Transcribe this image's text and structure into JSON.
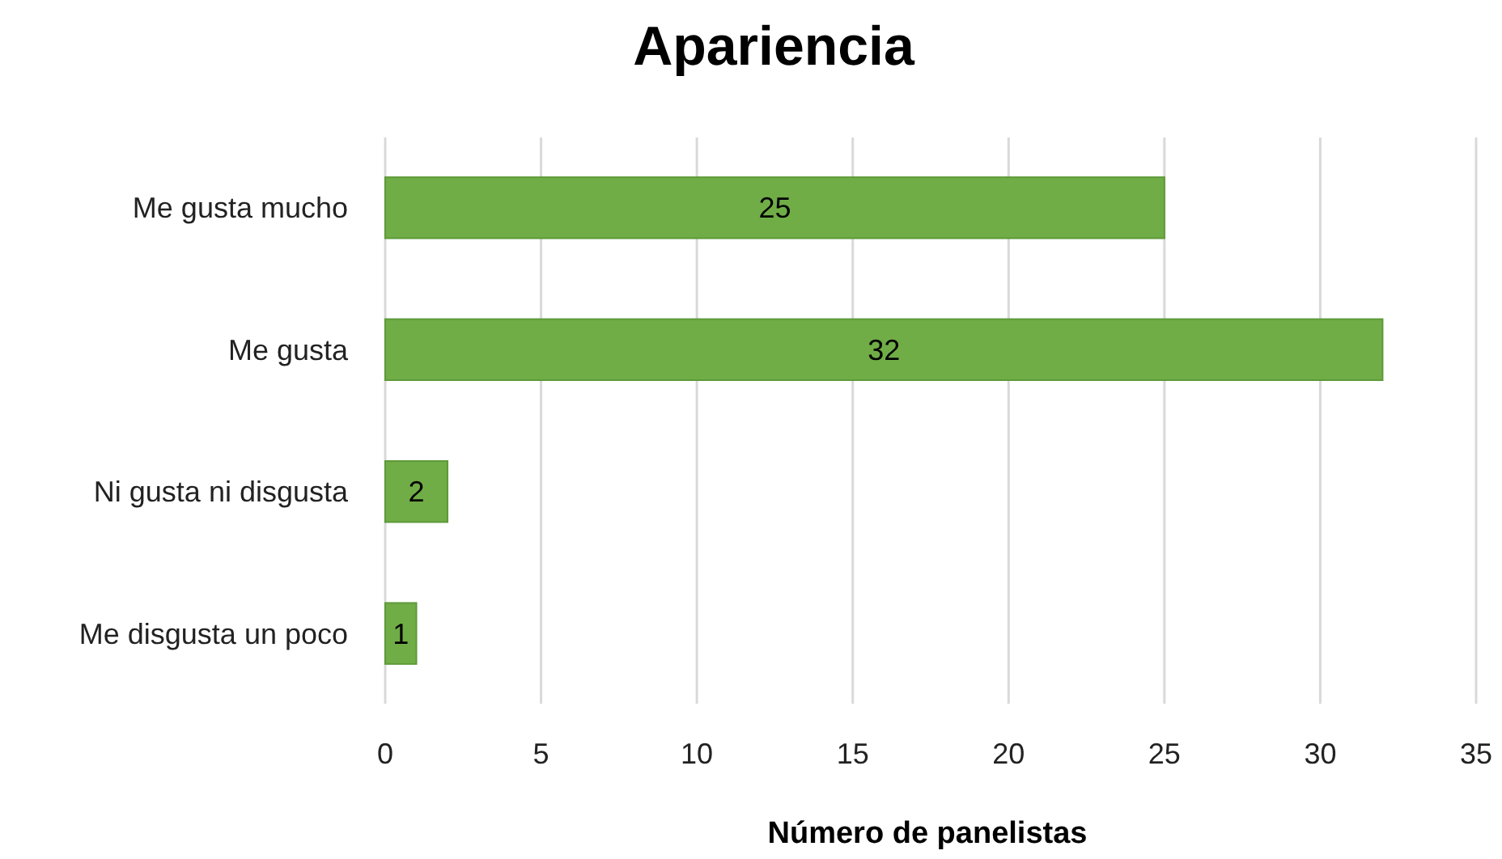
{
  "chart_data": {
    "type": "bar",
    "orientation": "horizontal",
    "title": "Apariencia",
    "xlabel": "Número de panelistas",
    "categories": [
      "Me gusta mucho",
      "Me gusta",
      "Ni gusta ni disgusta",
      "Me disgusta un poco"
    ],
    "values": [
      25,
      32,
      2,
      1
    ],
    "color": "#70ad47",
    "xlim": [
      0,
      35
    ],
    "xticks": [
      0,
      5,
      10,
      15,
      20,
      25,
      30,
      35
    ],
    "grid": "x",
    "data_labels": true
  }
}
